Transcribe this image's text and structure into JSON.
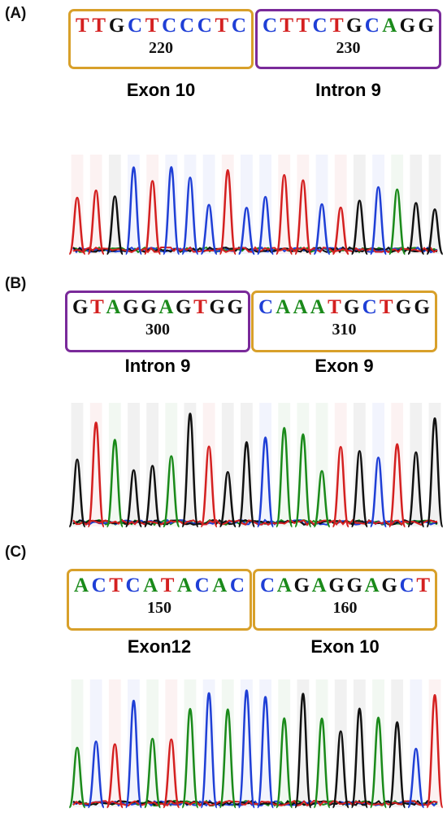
{
  "colors": {
    "exon_box": "#d8a02a",
    "intron_box": "#7a2a9a",
    "base_A": "#1a8a1a",
    "base_C": "#1f3fd6",
    "base_G": "#111111",
    "base_T": "#d42020"
  },
  "panels": [
    {
      "label": "(A)",
      "boxes": [
        {
          "sequence": "TTGCTCCCTC",
          "position": "220",
          "region": "Exon 10",
          "kind": "exon"
        },
        {
          "sequence": "CTTCTGCAGG",
          "position": "230",
          "region": "Intron 9",
          "kind": "intron"
        }
      ],
      "trace_bases": [
        "T",
        "T",
        "G",
        "C",
        "T",
        "C",
        "C",
        "C",
        "T",
        "C",
        "C",
        "T",
        "T",
        "C",
        "T",
        "G",
        "C",
        "A",
        "G",
        "G"
      ]
    },
    {
      "label": "(B)",
      "boxes": [
        {
          "sequence": "GTAGGAGTGG",
          "position": "300",
          "region": "Intron 9",
          "kind": "intron"
        },
        {
          "sequence": "CAAATGCTGG",
          "position": "310",
          "region": "Exon 9",
          "kind": "exon"
        }
      ],
      "trace_bases": [
        "G",
        "T",
        "A",
        "G",
        "G",
        "A",
        "G",
        "T",
        "G",
        "G",
        "C",
        "A",
        "A",
        "A",
        "T",
        "G",
        "C",
        "T",
        "G",
        "G"
      ]
    },
    {
      "label": "(C)",
      "boxes": [
        {
          "sequence": "ACTCATACAC",
          "position": "150",
          "region": "Exon12",
          "kind": "exon"
        },
        {
          "sequence": "CAGAGGAGCT",
          "position": "160",
          "region": "Exon 10",
          "kind": "exon"
        }
      ],
      "trace_bases": [
        "A",
        "C",
        "T",
        "C",
        "A",
        "T",
        "A",
        "C",
        "A",
        "C",
        "C",
        "A",
        "G",
        "A",
        "G",
        "G",
        "A",
        "G",
        "C",
        "T"
      ]
    }
  ]
}
